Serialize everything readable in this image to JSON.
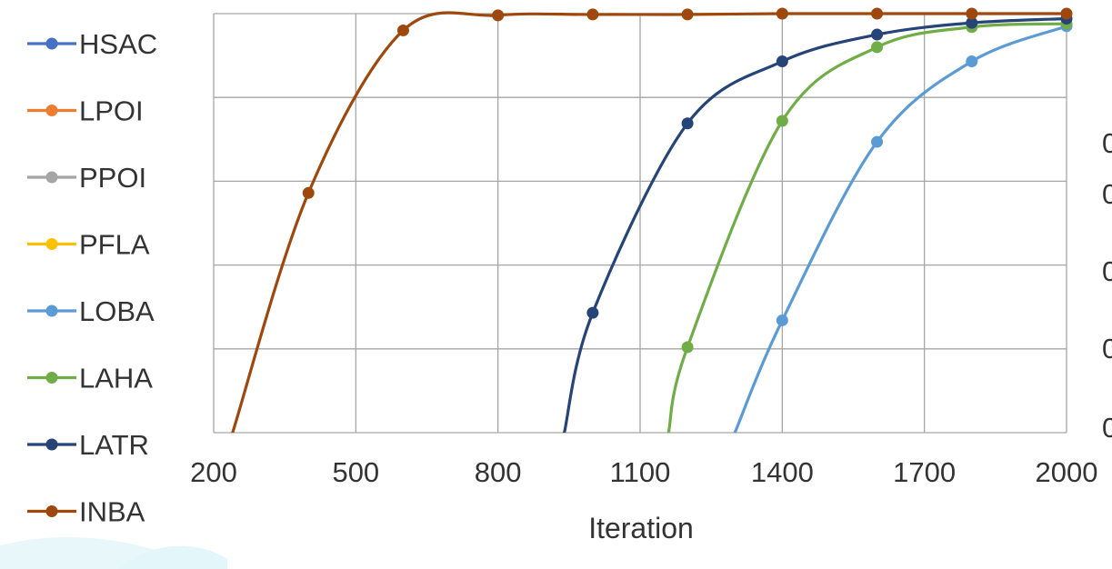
{
  "chart_data": {
    "type": "line",
    "title": "",
    "xlabel": "Iteration",
    "ylabel": "",
    "xlim": [
      200,
      2000
    ],
    "ylim": [
      0,
      5
    ],
    "x_ticks": [
      200,
      500,
      800,
      1100,
      1400,
      1700,
      2000
    ],
    "x_tick_labels": [
      "200",
      "500",
      "800",
      "1100",
      "1400",
      "1700",
      "2000"
    ],
    "right_tick_partial_labels": [
      "0",
      "0",
      "0",
      "0",
      "0"
    ],
    "grid": true,
    "legend_position": "left",
    "series": [
      {
        "name": "HSAC",
        "color": "#4472C4",
        "x": [],
        "y": []
      },
      {
        "name": "LPOI",
        "color": "#ED7D31",
        "x": [],
        "y": []
      },
      {
        "name": "PPOI",
        "color": "#A5A5A5",
        "x": [],
        "y": []
      },
      {
        "name": "PFLA",
        "color": "#FFC000",
        "x": [],
        "y": []
      },
      {
        "name": "LOBA",
        "color": "#5B9BD5",
        "x": [
          1300,
          1400,
          1600,
          1800,
          2000
        ],
        "y": [
          0.0,
          1.34,
          3.47,
          4.43,
          4.85
        ]
      },
      {
        "name": "LAHA",
        "color": "#70AD47",
        "x": [
          1160,
          1200,
          1400,
          1600,
          1800,
          2000
        ],
        "y": [
          0.0,
          1.02,
          3.72,
          4.6,
          4.84,
          4.88
        ]
      },
      {
        "name": "LATR",
        "color": "#264478",
        "x": [
          940,
          1000,
          1200,
          1400,
          1600,
          1800,
          2000
        ],
        "y": [
          0.0,
          1.43,
          3.69,
          4.43,
          4.75,
          4.89,
          4.94
        ]
      },
      {
        "name": "INBA",
        "color": "#9E480E",
        "x": [
          240,
          400,
          600,
          800,
          1000,
          1200,
          1400,
          1600,
          1800,
          2000
        ],
        "y": [
          0.0,
          2.86,
          4.8,
          4.98,
          4.99,
          4.99,
          5.0,
          5.0,
          5.0,
          5.0
        ]
      }
    ]
  }
}
